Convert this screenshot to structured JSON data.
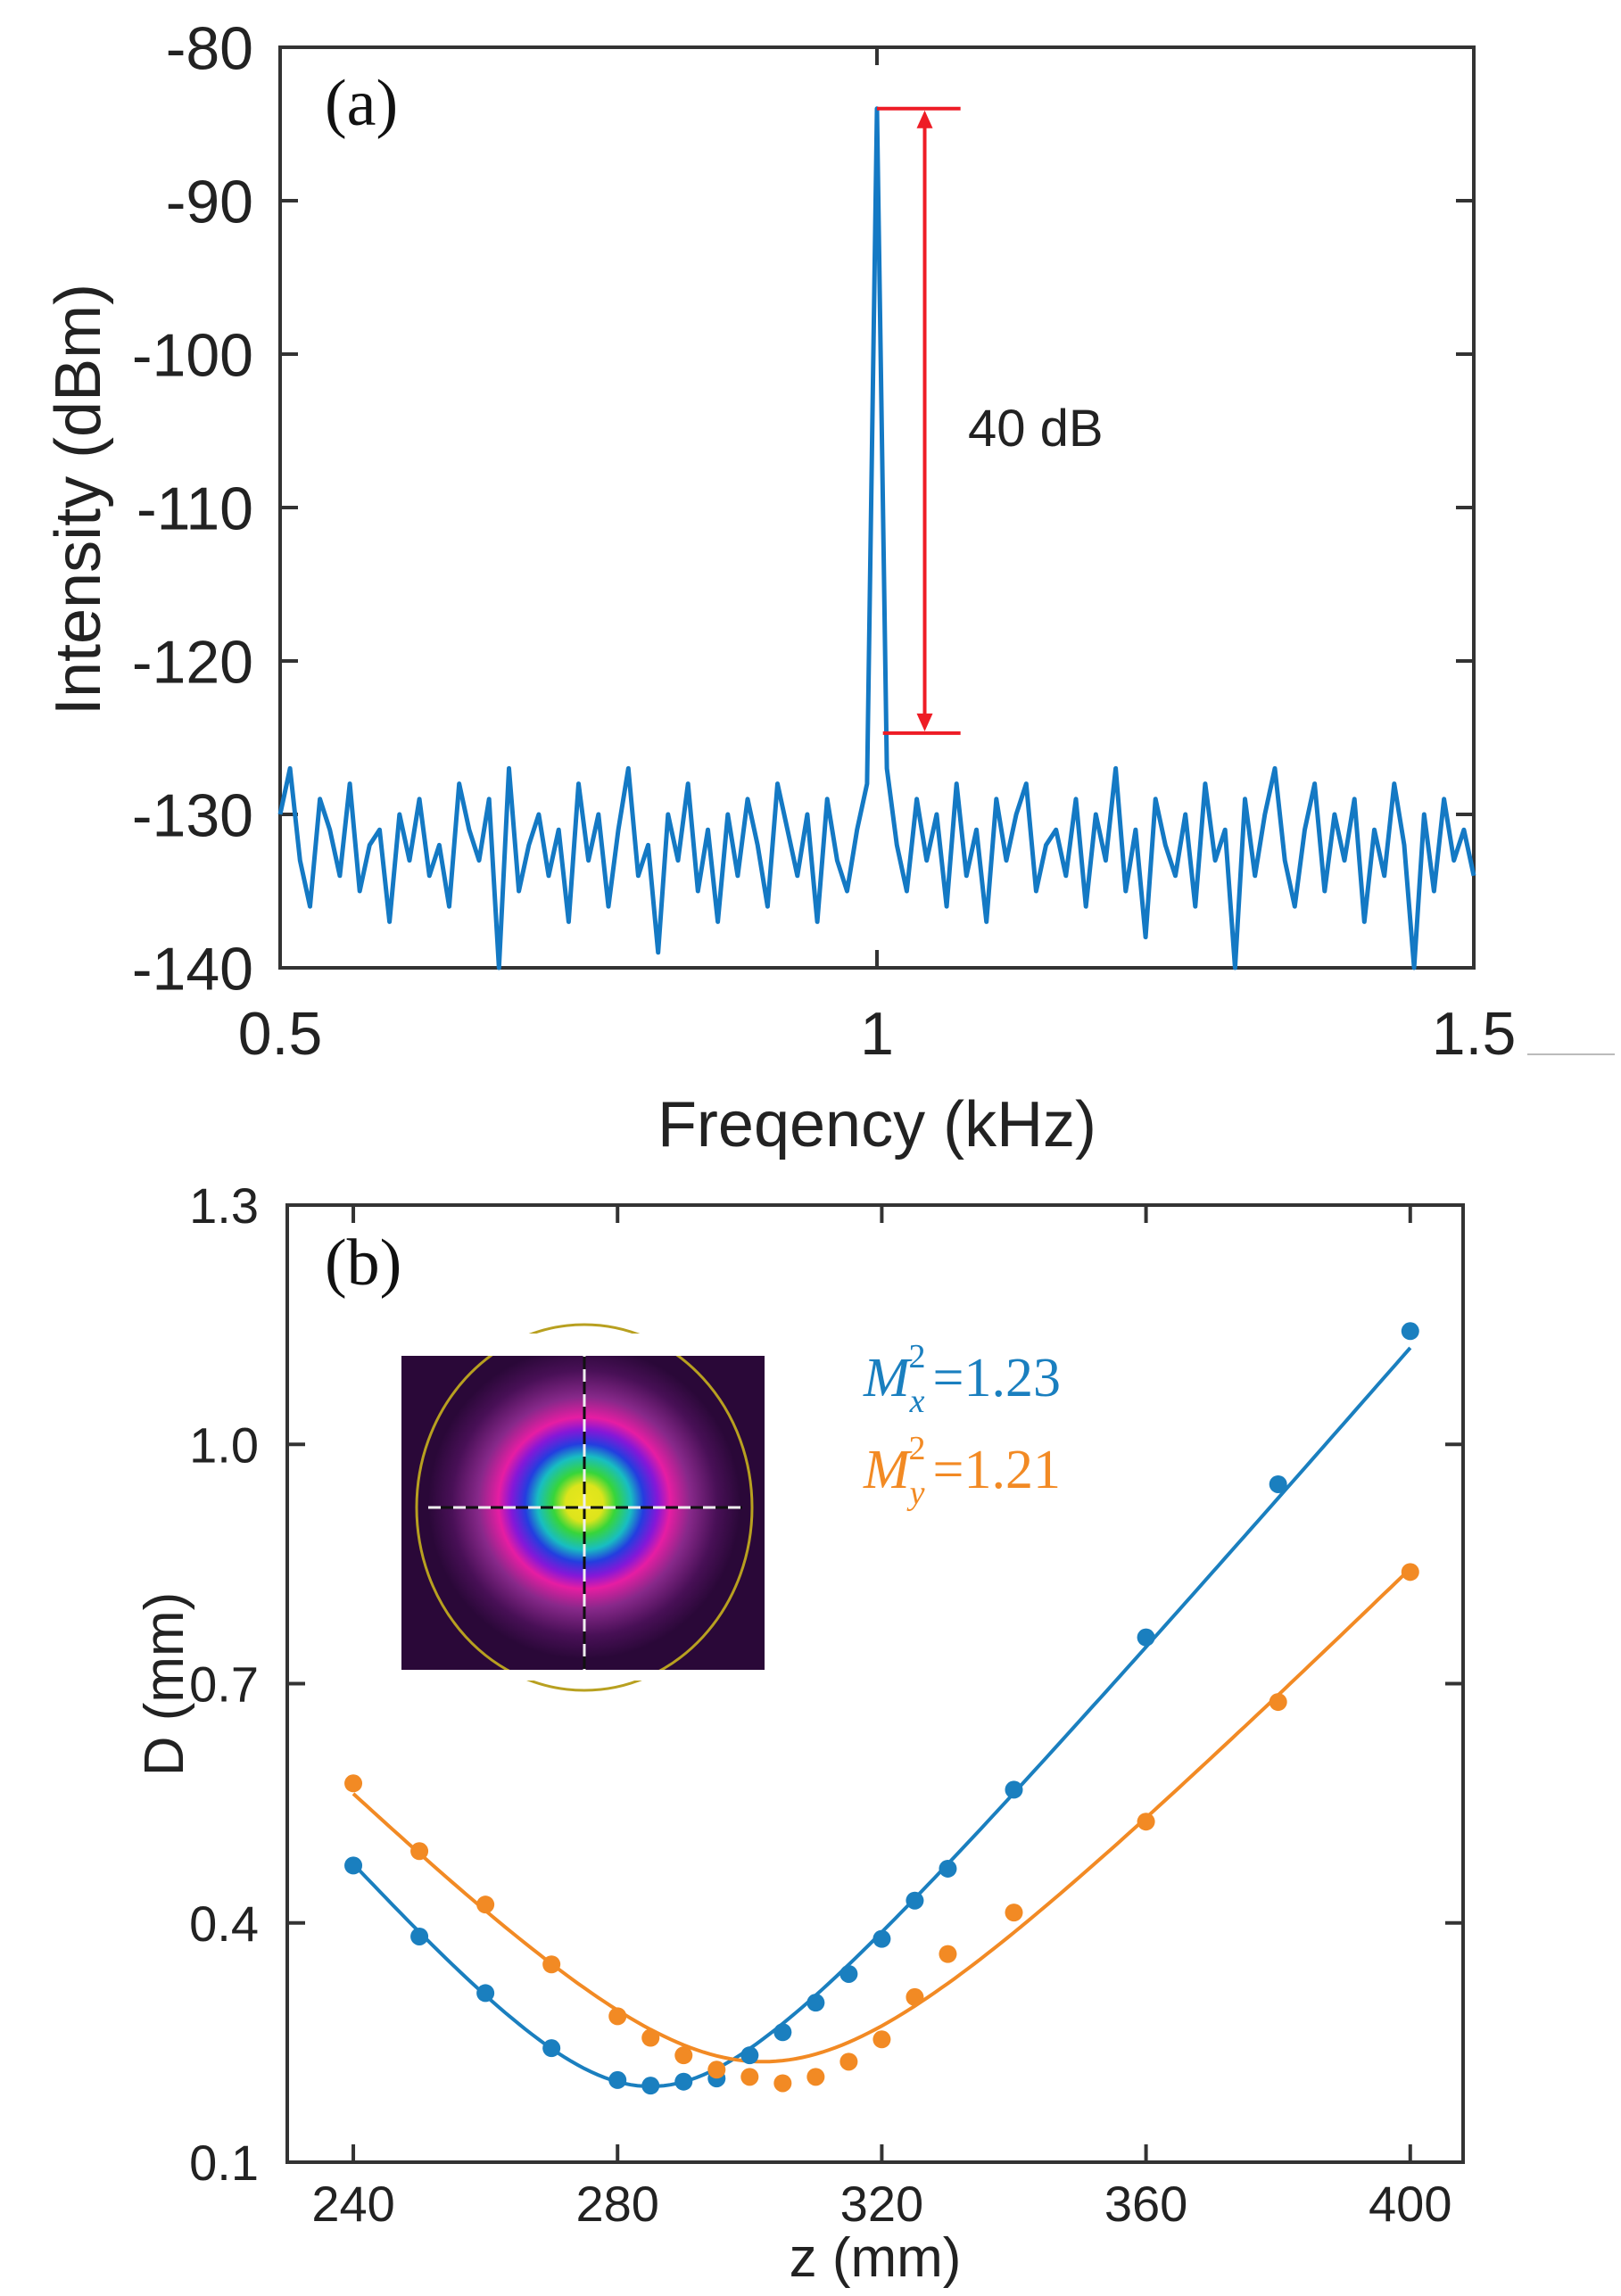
{
  "chart_data": [
    {
      "type": "line",
      "panel_label": "(a)",
      "xlabel": "Freqency (kHz)",
      "ylabel": "Intensity (dBm)",
      "xlim": [
        0.5,
        1.5
      ],
      "ylim": [
        -140,
        -80
      ],
      "xticks": [
        "0.5",
        "1",
        "1.5"
      ],
      "xtick_values": [
        0.5,
        1,
        1.5
      ],
      "yticks": [
        "-80",
        "-90",
        "-100",
        "-110",
        "-120",
        "-130",
        "-140"
      ],
      "ytick_values": [
        -80,
        -90,
        -100,
        -110,
        -120,
        -130,
        -140
      ],
      "grid": false,
      "series": [
        {
          "name": "spectrum",
          "color": "#1479c4",
          "x_range": [
            0.5,
            1.5
          ],
          "values": [
            -130,
            -127,
            -133,
            -136,
            -129,
            -131,
            -134,
            -128,
            -135,
            -132,
            -131,
            -137,
            -130,
            -133,
            -129,
            -134,
            -132,
            -136,
            -128,
            -131,
            -133,
            -129,
            -140,
            -127,
            -135,
            -132,
            -130,
            -134,
            -131,
            -137,
            -128,
            -133,
            -130,
            -136,
            -131,
            -127,
            -134,
            -132,
            -139,
            -130,
            -133,
            -128,
            -135,
            -131,
            -137,
            -130,
            -134,
            -129,
            -132,
            -136,
            -128,
            -131,
            -134,
            -130,
            -137,
            -129,
            -133,
            -135,
            -131,
            -128,
            -84,
            -127,
            -132,
            -135,
            -129,
            -133,
            -130,
            -136,
            -128,
            -134,
            -131,
            -137,
            -129,
            -133,
            -130,
            -128,
            -135,
            -132,
            -131,
            -134,
            -129,
            -136,
            -130,
            -133,
            -127,
            -135,
            -131,
            -138,
            -129,
            -132,
            -134,
            -130,
            -136,
            -128,
            -133,
            -131,
            -140,
            -129,
            -134,
            -130,
            -127,
            -133,
            -136,
            -131,
            -128,
            -135,
            -130,
            -133,
            -129,
            -137,
            -131,
            -134,
            -128,
            -132,
            -140,
            -130,
            -135,
            -129,
            -133,
            -131,
            -134
          ]
        }
      ],
      "annotation": {
        "text": "40 dB",
        "color": "#ee1c25",
        "from": -84,
        "to": -124.7
      }
    },
    {
      "type": "scatter",
      "panel_label": "(b)",
      "xlabel": "z (mm)",
      "ylabel": "D (mm)",
      "xlim": [
        230,
        408
      ],
      "ylim": [
        0.1,
        1.3
      ],
      "xticks": [
        "240",
        "280",
        "320",
        "360",
        "400"
      ],
      "xtick_values": [
        240,
        280,
        320,
        360,
        400
      ],
      "yticks": [
        "1.3",
        "1.0",
        "0.7",
        "0.4",
        "0.1"
      ],
      "ytick_values": [
        1.3,
        1.0,
        0.7,
        0.4,
        0.1
      ],
      "grid": false,
      "series": [
        {
          "name": "x",
          "color": "#1a7fbf",
          "x": [
            240,
            250,
            260,
            270,
            280,
            285,
            290,
            295,
            300,
            305,
            310,
            315,
            320,
            325,
            330,
            340,
            360,
            380,
            400
          ],
          "y": [
            0.472,
            0.383,
            0.312,
            0.243,
            0.203,
            0.196,
            0.201,
            0.205,
            0.234,
            0.263,
            0.3,
            0.336,
            0.38,
            0.428,
            0.468,
            0.567,
            0.758,
            0.95,
            1.142
          ],
          "fit": {
            "z0": 285,
            "D0": 0.195,
            "theta": 0.0096
          },
          "label": {
            "symbol": "M",
            "sub": "x",
            "sup": "2",
            "value": "=1.23"
          }
        },
        {
          "name": "y",
          "color": "#f28a24",
          "x": [
            240,
            250,
            260,
            270,
            280,
            285,
            290,
            295,
            300,
            305,
            310,
            315,
            320,
            325,
            330,
            340,
            360,
            380,
            400
          ],
          "y": [
            0.575,
            0.49,
            0.423,
            0.348,
            0.283,
            0.256,
            0.234,
            0.216,
            0.207,
            0.199,
            0.207,
            0.226,
            0.254,
            0.307,
            0.361,
            0.413,
            0.527,
            0.677,
            0.84
          ],
          "fit": {
            "z0": 302,
            "D0": 0.226,
            "theta": 0.0083
          },
          "label": {
            "symbol": "M",
            "sub": "y",
            "sup": "2",
            "value": "=1.21"
          }
        }
      ],
      "inset": "beam-profile-image"
    }
  ]
}
